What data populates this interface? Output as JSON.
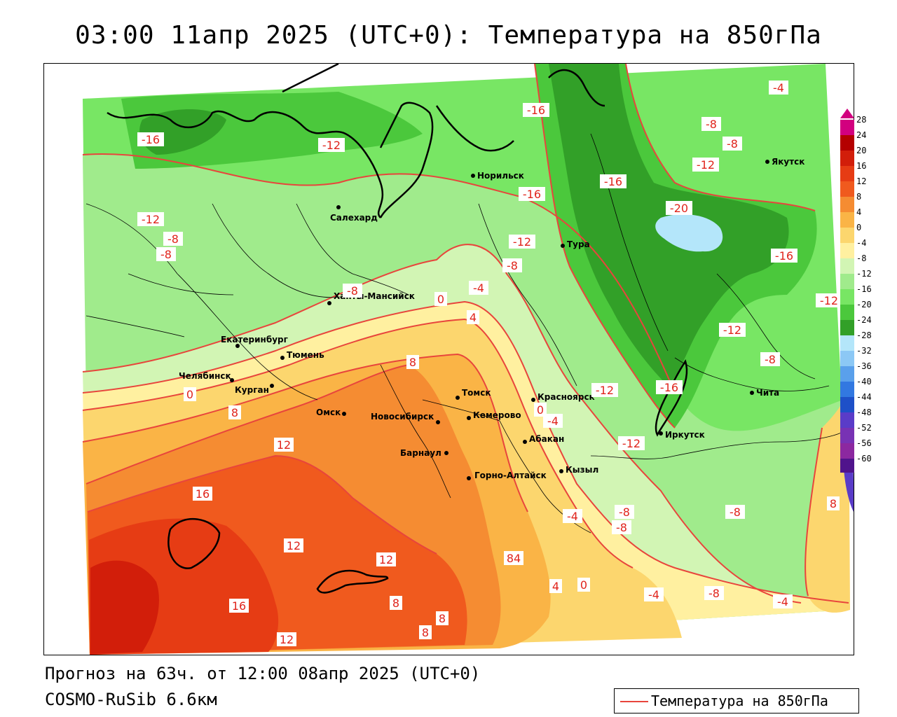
{
  "title": "03:00 11апр 2025 (UTC+0): Температура на 850гПа",
  "forecast_line": "Прогноз на 63ч. от 12:00 08апр 2025 (UTC+0)",
  "model_line": "COSMO-RuSib 6.6км",
  "legend_label": "Температура на 850гПа",
  "colors": {
    "isoline": "#e8453c",
    "coast": "#000000",
    "borders": "#000000"
  },
  "colorbar": [
    {
      "label": "28",
      "color": "#d2007f"
    },
    {
      "label": "24",
      "color": "#b40000"
    },
    {
      "label": "20",
      "color": "#d21e0a"
    },
    {
      "label": "16",
      "color": "#e63c14"
    },
    {
      "label": "12",
      "color": "#f05a1e"
    },
    {
      "label": "8",
      "color": "#f58c32"
    },
    {
      "label": "4",
      "color": "#fab446"
    },
    {
      "label": "0",
      "color": "#fcd66e"
    },
    {
      "label": "-4",
      "color": "#fff0a0"
    },
    {
      "label": "-8",
      "color": "#d2f5b4"
    },
    {
      "label": "-12",
      "color": "#a0eb8c"
    },
    {
      "label": "-16",
      "color": "#78e664"
    },
    {
      "label": "-20",
      "color": "#4bc83c"
    },
    {
      "label": "-24",
      "color": "#32a028"
    },
    {
      "label": "-28",
      "color": "#b4e6fa"
    },
    {
      "label": "-32",
      "color": "#8cc8f5"
    },
    {
      "label": "-36",
      "color": "#5aa0eb"
    },
    {
      "label": "-40",
      "color": "#3278e1"
    },
    {
      "label": "-44",
      "color": "#1e50c8"
    },
    {
      "label": "-48",
      "color": "#5a3cc8"
    },
    {
      "label": "-52",
      "color": "#7832b4"
    },
    {
      "label": "-56",
      "color": "#8c28a0"
    },
    {
      "label": "-60",
      "color": "#50148c"
    }
  ],
  "cities": [
    {
      "name": "Норильск"
    },
    {
      "name": "Якутск"
    },
    {
      "name": "Салехард"
    },
    {
      "name": "Тура"
    },
    {
      "name": "Ханты-Мансийск"
    },
    {
      "name": "Екатеринбург"
    },
    {
      "name": "Тюмень"
    },
    {
      "name": "Челябинск"
    },
    {
      "name": "Курган"
    },
    {
      "name": "Омск"
    },
    {
      "name": "Новосибирск"
    },
    {
      "name": "Томск"
    },
    {
      "name": "Кемерово"
    },
    {
      "name": "Красноярск"
    },
    {
      "name": "Абакан"
    },
    {
      "name": "Барнаул"
    },
    {
      "name": "Горно-Алтайск"
    },
    {
      "name": "Кызыл"
    },
    {
      "name": "Иркутск"
    },
    {
      "name": "Чита"
    }
  ],
  "isotherm_labels": [
    {
      "text": "-4"
    },
    {
      "text": "-16"
    },
    {
      "text": "-8"
    },
    {
      "text": "-8"
    },
    {
      "text": "-12"
    },
    {
      "text": "-16"
    },
    {
      "text": "-12"
    },
    {
      "text": "-16"
    },
    {
      "text": "-16"
    },
    {
      "text": "-20"
    },
    {
      "text": "-12"
    },
    {
      "text": "-8"
    },
    {
      "text": "-8"
    },
    {
      "text": "-12"
    },
    {
      "text": "-16"
    },
    {
      "text": "-12"
    },
    {
      "text": "-8"
    },
    {
      "text": "-4"
    },
    {
      "text": "-8"
    },
    {
      "text": "0"
    },
    {
      "text": "4"
    },
    {
      "text": "-12"
    },
    {
      "text": "-16"
    },
    {
      "text": "-12"
    },
    {
      "text": "-8"
    },
    {
      "text": "8"
    },
    {
      "text": "0"
    },
    {
      "text": "8"
    },
    {
      "text": "12"
    },
    {
      "text": "0"
    },
    {
      "text": "-4"
    },
    {
      "text": "-12"
    },
    {
      "text": "16"
    },
    {
      "text": "-4"
    },
    {
      "text": "-8"
    },
    {
      "text": "-8"
    },
    {
      "text": "-8"
    },
    {
      "text": "8"
    },
    {
      "text": "12"
    },
    {
      "text": "12"
    },
    {
      "text": "84"
    },
    {
      "text": "4"
    },
    {
      "text": "0"
    },
    {
      "text": "-4"
    },
    {
      "text": "-8"
    },
    {
      "text": "-4"
    },
    {
      "text": "16"
    },
    {
      "text": "8"
    },
    {
      "text": "8"
    },
    {
      "text": "8"
    },
    {
      "text": "12"
    },
    {
      "text": "-12"
    }
  ]
}
